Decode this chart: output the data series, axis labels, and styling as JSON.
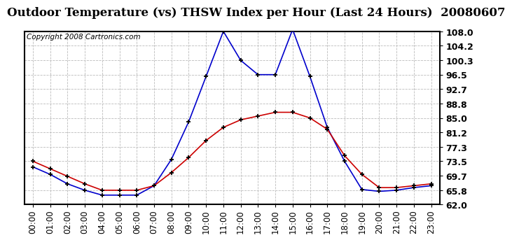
{
  "title": "Outdoor Temperature (vs) THSW Index per Hour (Last 24 Hours)  20080607",
  "copyright": "Copyright 2008 Cartronics.com",
  "hours": [
    "00:00",
    "01:00",
    "02:00",
    "03:00",
    "04:00",
    "05:00",
    "06:00",
    "07:00",
    "08:00",
    "09:00",
    "10:00",
    "11:00",
    "12:00",
    "13:00",
    "14:00",
    "15:00",
    "16:00",
    "17:00",
    "18:00",
    "19:00",
    "20:00",
    "21:00",
    "22:00",
    "23:00"
  ],
  "temp": [
    73.5,
    71.5,
    69.5,
    67.5,
    65.8,
    65.8,
    65.8,
    67.0,
    70.5,
    74.5,
    79.0,
    82.5,
    84.5,
    85.5,
    86.5,
    86.5,
    85.0,
    82.0,
    75.0,
    70.0,
    66.5,
    66.5,
    67.0,
    67.5
  ],
  "thsw": [
    72.0,
    70.0,
    67.5,
    65.8,
    64.5,
    64.5,
    64.5,
    67.0,
    74.0,
    84.0,
    96.0,
    108.0,
    100.3,
    96.5,
    96.5,
    108.5,
    96.0,
    82.5,
    73.5,
    66.0,
    65.5,
    65.8,
    66.5,
    67.0
  ],
  "temp_color": "#cc0000",
  "thsw_color": "#0000cc",
  "marker_color": "#000000",
  "bg_color": "#ffffff",
  "plot_bg_color": "#ffffff",
  "grid_color": "#bbbbbb",
  "ymin": 62.0,
  "ymax": 108.0,
  "yticks": [
    62.0,
    65.8,
    69.7,
    73.5,
    77.3,
    81.2,
    85.0,
    88.8,
    92.7,
    96.5,
    100.3,
    104.2,
    108.0
  ],
  "title_fontsize": 12,
  "copyright_fontsize": 7.5,
  "tick_fontsize": 8.5,
  "ytick_fontsize": 9
}
